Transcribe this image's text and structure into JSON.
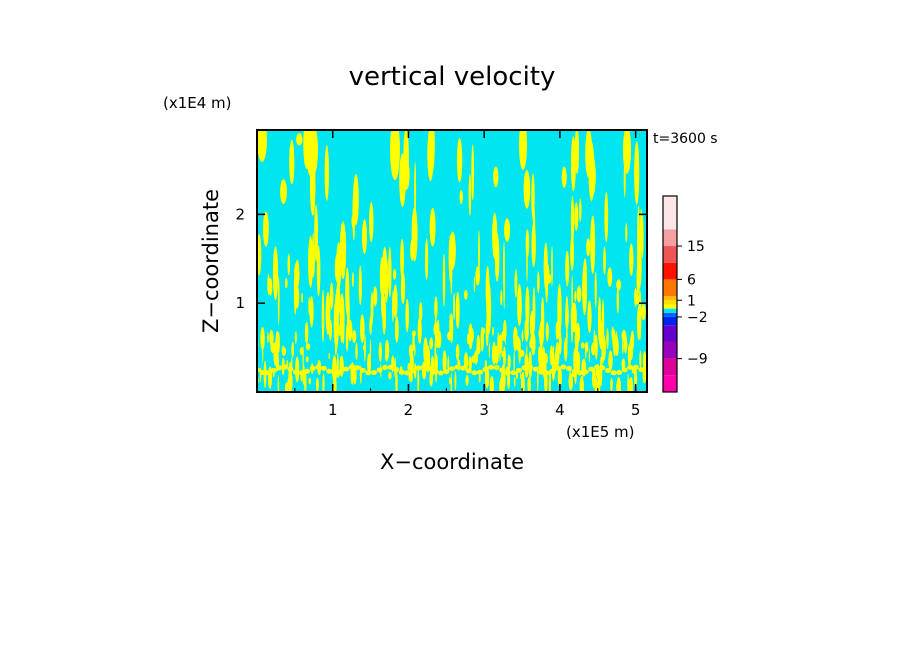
{
  "chart_data": {
    "type": "heatmap",
    "title": "vertical velocity",
    "xlabel": "X−coordinate",
    "ylabel": "Z−coordinate",
    "x_unit": "(x1E5 m)",
    "y_unit": "(x1E4 m)",
    "time_label": "t=3600 s",
    "xlim": [
      0,
      5.15
    ],
    "ylim": [
      0,
      2.95
    ],
    "x_ticks": [
      1,
      2,
      3,
      4,
      5
    ],
    "x_tick_labels": [
      "1",
      "2",
      "3",
      "4",
      "5"
    ],
    "y_ticks": [
      1,
      2
    ],
    "y_tick_labels": [
      "1",
      "2"
    ],
    "grid": false,
    "field_colors": {
      "background": "#00e5ef",
      "positive": "#ffff00"
    },
    "colorbar": {
      "colors": [
        "#ff00aa",
        "#dd0099",
        "#9900bb",
        "#6600cc",
        "#0022ee",
        "#0066ff",
        "#00e5ef",
        "#ffff00",
        "#ffdd00",
        "#ffbb00",
        "#ff7700",
        "#ff1100",
        "#ee5555",
        "#f4a0a0",
        "#fde6e6"
      ],
      "weights": [
        2,
        2,
        2,
        2,
        1,
        0.5,
        0.5,
        0.5,
        0.5,
        0.5,
        2,
        2,
        2,
        2,
        4
      ],
      "labels": [
        "−9",
        "−2",
        "1",
        "6",
        "15"
      ],
      "label_values": [
        -9,
        -2,
        1,
        6,
        15
      ]
    }
  }
}
